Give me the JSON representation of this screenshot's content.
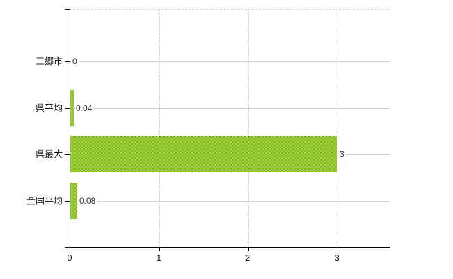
{
  "chart_data": {
    "type": "bar",
    "orientation": "horizontal",
    "title": "",
    "categories": [
      "三郷市",
      "県平均",
      "県最大",
      "全国平均"
    ],
    "values": [
      0,
      0.04,
      3,
      0.08
    ],
    "value_labels": [
      "0",
      "0.04",
      "3",
      "0.08"
    ],
    "x_ticks": [
      0,
      1,
      2,
      3
    ],
    "x_tick_labels": [
      "0",
      "1",
      "2",
      "3"
    ],
    "xlim": [
      0,
      3.6
    ],
    "grid": true,
    "legend": false,
    "colors": {
      "bar_base": "#a6d53a",
      "bar_dot": "#85b52f",
      "axis": "#000000",
      "grid_horizontal": "#ccd4cc",
      "grid_vertical": "#d2ced2",
      "grid_top": "#d4d4d4"
    }
  }
}
